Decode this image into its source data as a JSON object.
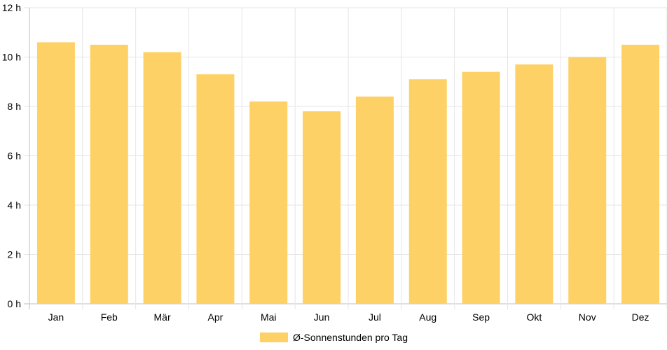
{
  "chart_data": {
    "type": "bar",
    "categories": [
      "Jan",
      "Feb",
      "Mär",
      "Apr",
      "Mai",
      "Jun",
      "Jul",
      "Aug",
      "Sep",
      "Okt",
      "Nov",
      "Dez"
    ],
    "series": [
      {
        "name": "Ø-Sonnenstunden pro Tag",
        "values": [
          10.6,
          10.5,
          10.2,
          9.3,
          8.2,
          7.8,
          8.4,
          9.1,
          9.4,
          9.7,
          10.0,
          10.5
        ],
        "color": "#fed166"
      }
    ],
    "y_ticks": [
      "0 h",
      "2 h",
      "4 h",
      "6 h",
      "8 h",
      "10 h",
      "12 h"
    ],
    "ylim": [
      0,
      12
    ],
    "grid": true,
    "legend_position": "bottom"
  }
}
